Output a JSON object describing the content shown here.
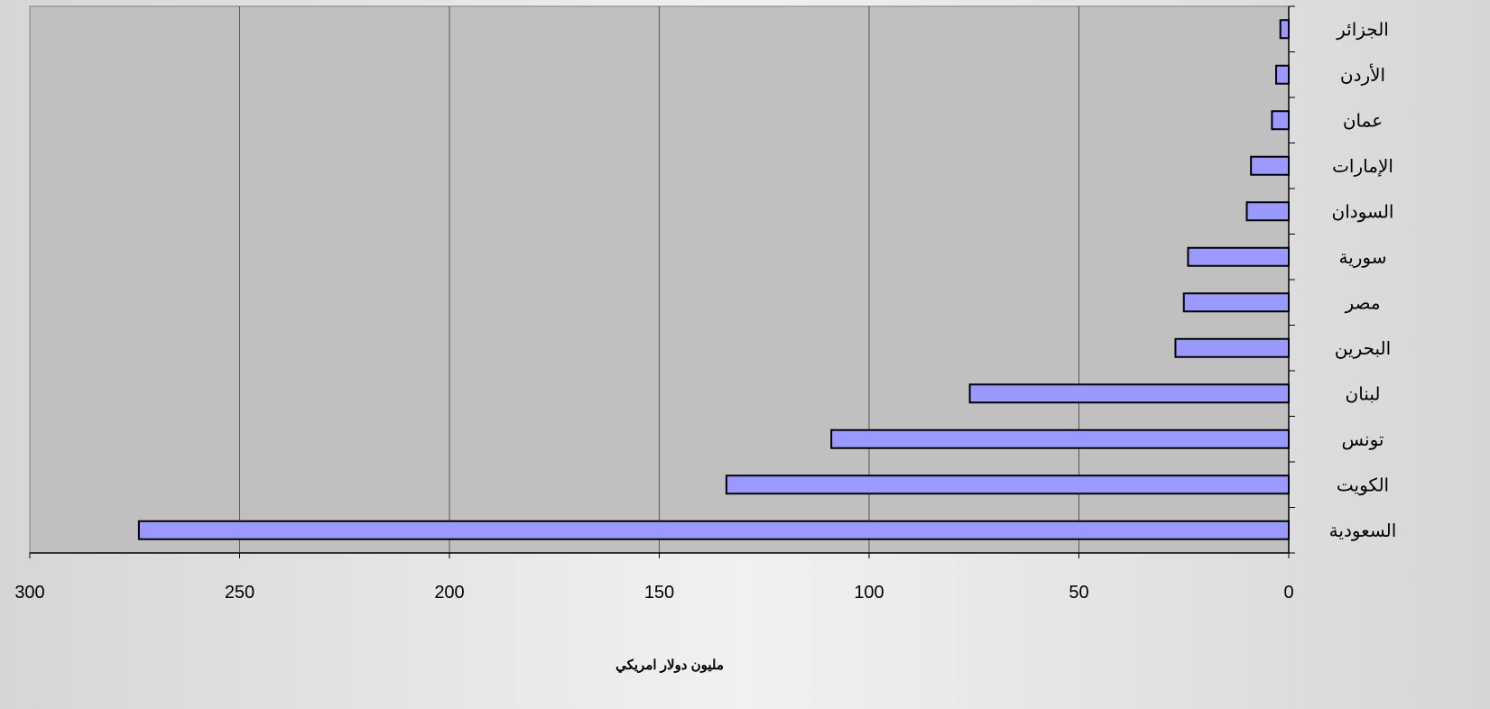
{
  "chart_data": {
    "type": "bar",
    "orientation": "horizontal",
    "x_direction": "reversed",
    "categories": [
      "السعودية",
      "الكويت",
      "تونس",
      "لبنان",
      "البحرين",
      "مصر",
      "سورية",
      "السودان",
      "الإمارات",
      "عمان",
      "الأردن",
      "الجزائر"
    ],
    "values": [
      274,
      134,
      109,
      76,
      27,
      25,
      24,
      10,
      9,
      4,
      3,
      2
    ],
    "xlim": [
      0,
      300
    ],
    "xticks": [
      300,
      250,
      200,
      150,
      100,
      50,
      0
    ],
    "xlabel": "مليون دولار امريكي",
    "title": "",
    "grid": "vertical",
    "legend": "none",
    "colors": {
      "bar_fill": "#9999ff",
      "bar_stroke": "#000000",
      "plot_bg": "#c0c0c0",
      "grid": "#000000"
    }
  }
}
